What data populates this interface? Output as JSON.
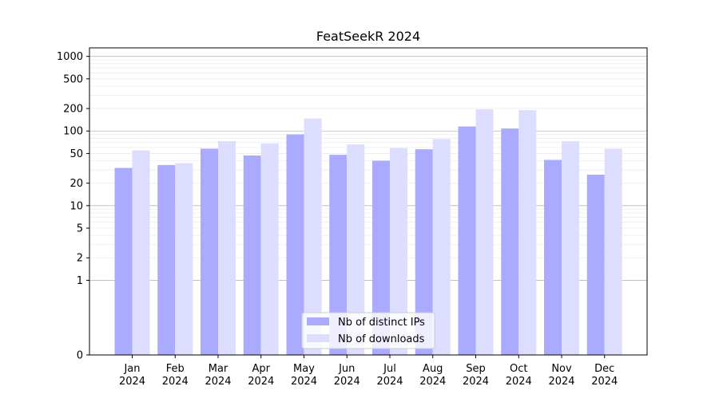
{
  "chart_data": {
    "type": "bar",
    "title": "FeatSeekR 2024",
    "xlabel": "",
    "ylabel": "",
    "yscale": "symlog",
    "ylim": [
      0,
      1300
    ],
    "yticks": [
      0,
      1,
      2,
      5,
      10,
      20,
      50,
      100,
      200,
      500,
      1000
    ],
    "ytick_labels": [
      "0",
      "1",
      "2",
      "5",
      "10",
      "20",
      "50",
      "100",
      "200",
      "500",
      "1000"
    ],
    "grid": true,
    "legend_position": "bottom-center",
    "categories": [
      [
        "Jan",
        "2024"
      ],
      [
        "Feb",
        "2024"
      ],
      [
        "Mar",
        "2024"
      ],
      [
        "Apr",
        "2024"
      ],
      [
        "May",
        "2024"
      ],
      [
        "Jun",
        "2024"
      ],
      [
        "Jul",
        "2024"
      ],
      [
        "Aug",
        "2024"
      ],
      [
        "Sep",
        "2024"
      ],
      [
        "Oct",
        "2024"
      ],
      [
        "Nov",
        "2024"
      ],
      [
        "Dec",
        "2024"
      ]
    ],
    "series": [
      {
        "name": "Nb of distinct IPs",
        "color": "#aaaaff",
        "values": [
          32,
          35,
          58,
          47,
          90,
          48,
          40,
          57,
          115,
          108,
          41,
          26
        ]
      },
      {
        "name": "Nb of downloads",
        "color": "#ddddff",
        "values": [
          55,
          37,
          73,
          68,
          147,
          66,
          59,
          78,
          195,
          190,
          73,
          58
        ]
      }
    ]
  }
}
